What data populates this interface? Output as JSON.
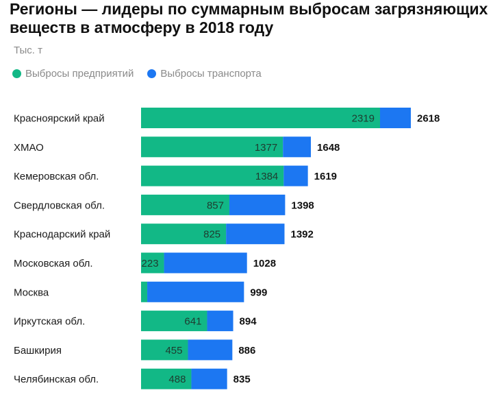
{
  "header": {
    "title": "Регионы — лидеры по суммарным выбросам загрязняющих веществ в атмосферу в 2018 году",
    "unit": "Тыс. т"
  },
  "colors": {
    "enterprises": "#12b886",
    "transport": "#1c77f2"
  },
  "chart_data": {
    "type": "bar",
    "orientation": "horizontal",
    "stacked": true,
    "title": "Регионы — лидеры по суммарным выбросам загрязняющих веществ в атмосферу в 2018 году",
    "ylabel": "Тыс. т",
    "legend_position": "top-left",
    "categories": [
      "Красноярский край",
      "ХМАО",
      "Кемеровская обл.",
      "Свердловская обл.",
      "Краснодарский край",
      "Московская обл.",
      "Москва",
      "Иркутская обл.",
      "Башкирия",
      "Челябинская обл."
    ],
    "series": [
      {
        "name": "Выбросы предприятий",
        "values": [
          2319,
          1377,
          1384,
          857,
          825,
          223,
          60,
          641,
          455,
          488
        ],
        "labels": [
          "2319",
          "1377",
          "1384",
          "857",
          "825",
          "223",
          "",
          "641",
          "455",
          "488"
        ]
      },
      {
        "name": "Выбросы транспорта",
        "values": [
          299,
          271,
          235,
          541,
          567,
          805,
          939,
          253,
          431,
          347
        ]
      }
    ],
    "totals": [
      2618,
      1648,
      1619,
      1398,
      1392,
      1028,
      999,
      894,
      886,
      835
    ],
    "xlim": [
      0,
      2618
    ]
  }
}
